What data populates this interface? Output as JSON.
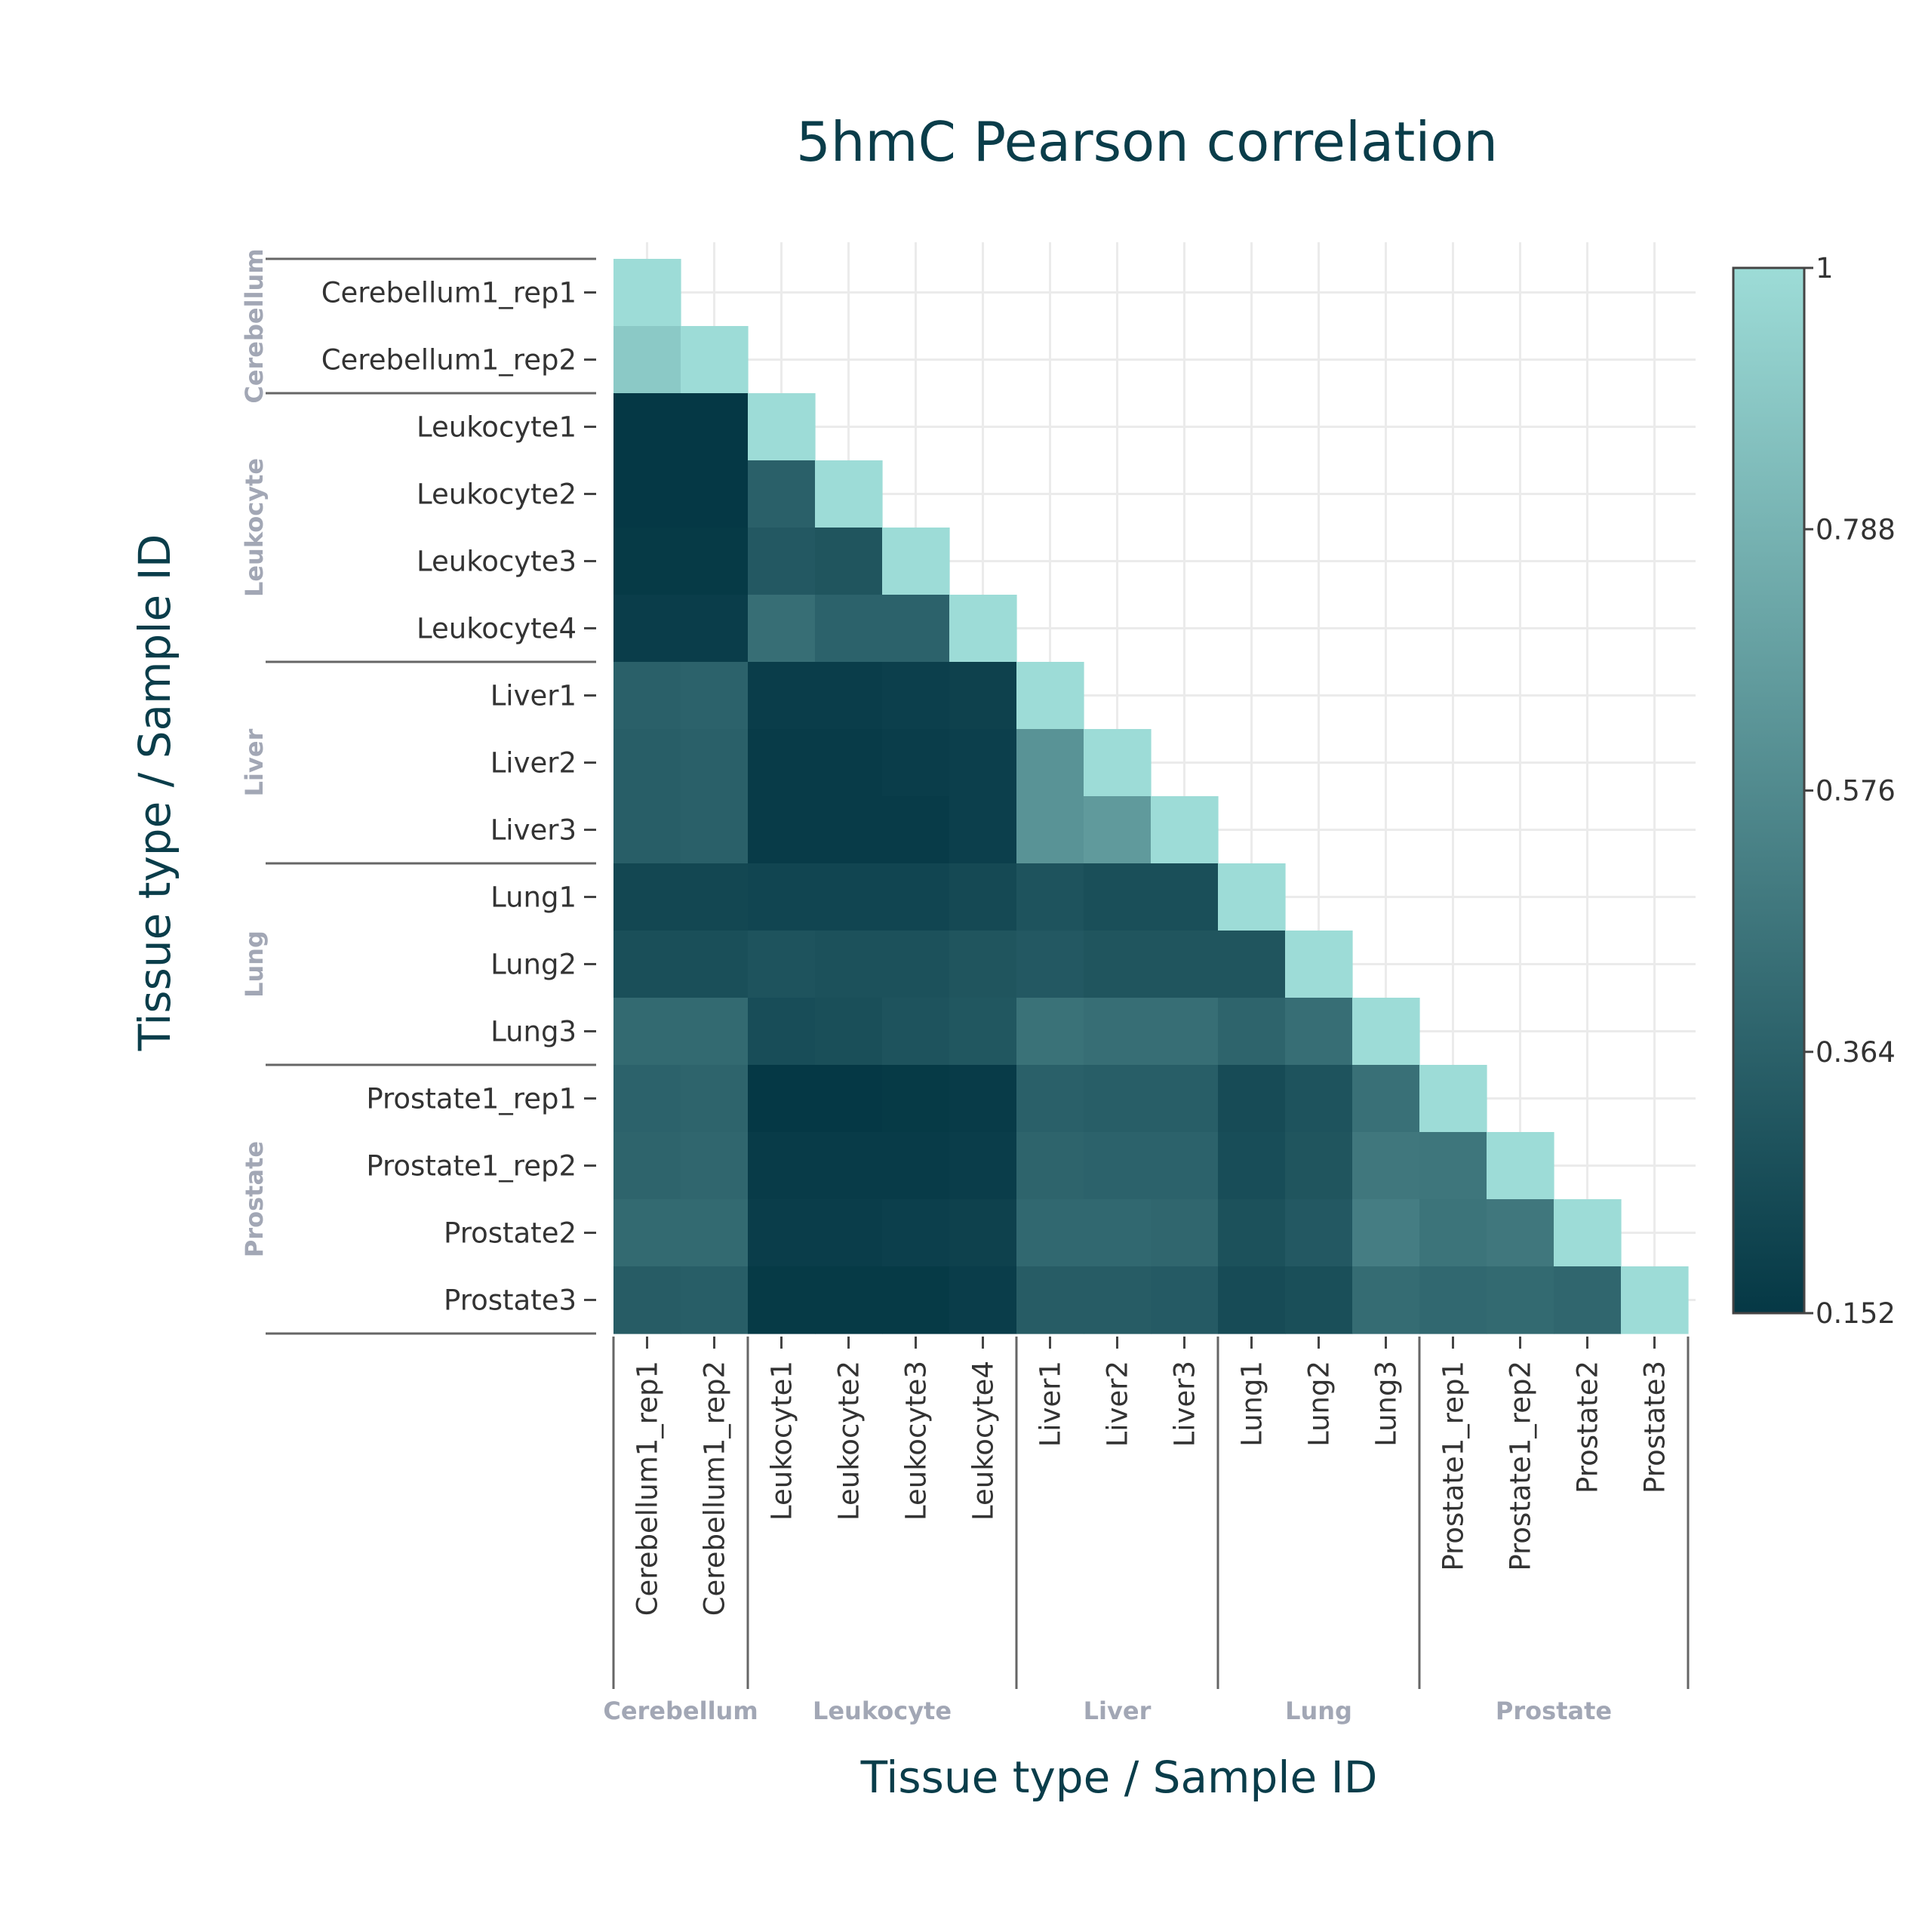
{
  "chart_data": {
    "type": "heatmap",
    "title": "5hmC Pearson correlation",
    "xlabel": "Tissue type / Sample ID",
    "ylabel": "Tissue type / Sample ID",
    "samples": [
      "Cerebellum1_rep1",
      "Cerebellum1_rep2",
      "Leukocyte1",
      "Leukocyte2",
      "Leukocyte3",
      "Leukocyte4",
      "Liver1",
      "Liver2",
      "Liver3",
      "Lung1",
      "Lung2",
      "Lung3",
      "Prostate1_rep1",
      "Prostate1_rep2",
      "Prostate2",
      "Prostate3"
    ],
    "groups": [
      {
        "name": "Cerebellum",
        "start": 0,
        "end": 1
      },
      {
        "name": "Leukocyte",
        "start": 2,
        "end": 5
      },
      {
        "name": "Liver",
        "start": 6,
        "end": 8
      },
      {
        "name": "Lung",
        "start": 9,
        "end": 11
      },
      {
        "name": "Prostate",
        "start": 12,
        "end": 15
      }
    ],
    "matrix_lower": [
      [
        1.0
      ],
      [
        0.9,
        1.0
      ],
      [
        0.152,
        0.152,
        1.0
      ],
      [
        0.152,
        0.152,
        0.36,
        1.0
      ],
      [
        0.16,
        0.16,
        0.32,
        0.3,
        1.0
      ],
      [
        0.18,
        0.18,
        0.43,
        0.37,
        0.37,
        1.0
      ],
      [
        0.36,
        0.37,
        0.18,
        0.18,
        0.19,
        0.2,
        1.0
      ],
      [
        0.35,
        0.36,
        0.17,
        0.17,
        0.18,
        0.19,
        0.62,
        1.0
      ],
      [
        0.35,
        0.36,
        0.17,
        0.17,
        0.17,
        0.19,
        0.62,
        0.66,
        1.0
      ],
      [
        0.23,
        0.23,
        0.22,
        0.22,
        0.22,
        0.24,
        0.29,
        0.27,
        0.27,
        1.0
      ],
      [
        0.27,
        0.27,
        0.29,
        0.28,
        0.28,
        0.3,
        0.32,
        0.3,
        0.3,
        0.3,
        1.0
      ],
      [
        0.41,
        0.41,
        0.26,
        0.27,
        0.29,
        0.31,
        0.45,
        0.43,
        0.43,
        0.38,
        0.43,
        1.0
      ],
      [
        0.37,
        0.38,
        0.152,
        0.152,
        0.16,
        0.17,
        0.36,
        0.35,
        0.35,
        0.25,
        0.29,
        0.44,
        1.0
      ],
      [
        0.38,
        0.39,
        0.17,
        0.17,
        0.17,
        0.18,
        0.38,
        0.37,
        0.37,
        0.26,
        0.3,
        0.48,
        0.47,
        1.0
      ],
      [
        0.41,
        0.41,
        0.18,
        0.18,
        0.19,
        0.2,
        0.4,
        0.4,
        0.39,
        0.28,
        0.32,
        0.51,
        0.46,
        0.48,
        1.0
      ],
      [
        0.34,
        0.35,
        0.16,
        0.16,
        0.16,
        0.18,
        0.34,
        0.34,
        0.33,
        0.25,
        0.27,
        0.42,
        0.4,
        0.41,
        0.39,
        1.0
      ]
    ],
    "colorscale": {
      "min": 0.152,
      "max": 1,
      "min_color": "#053845",
      "max_color": "#9ddcd7"
    },
    "colorbar_ticks": [
      "1",
      "0.788",
      "0.576",
      "0.364",
      "0.152"
    ],
    "colorbar_values": [
      1,
      0.788,
      0.576,
      0.364,
      0.152
    ],
    "grid": true
  }
}
